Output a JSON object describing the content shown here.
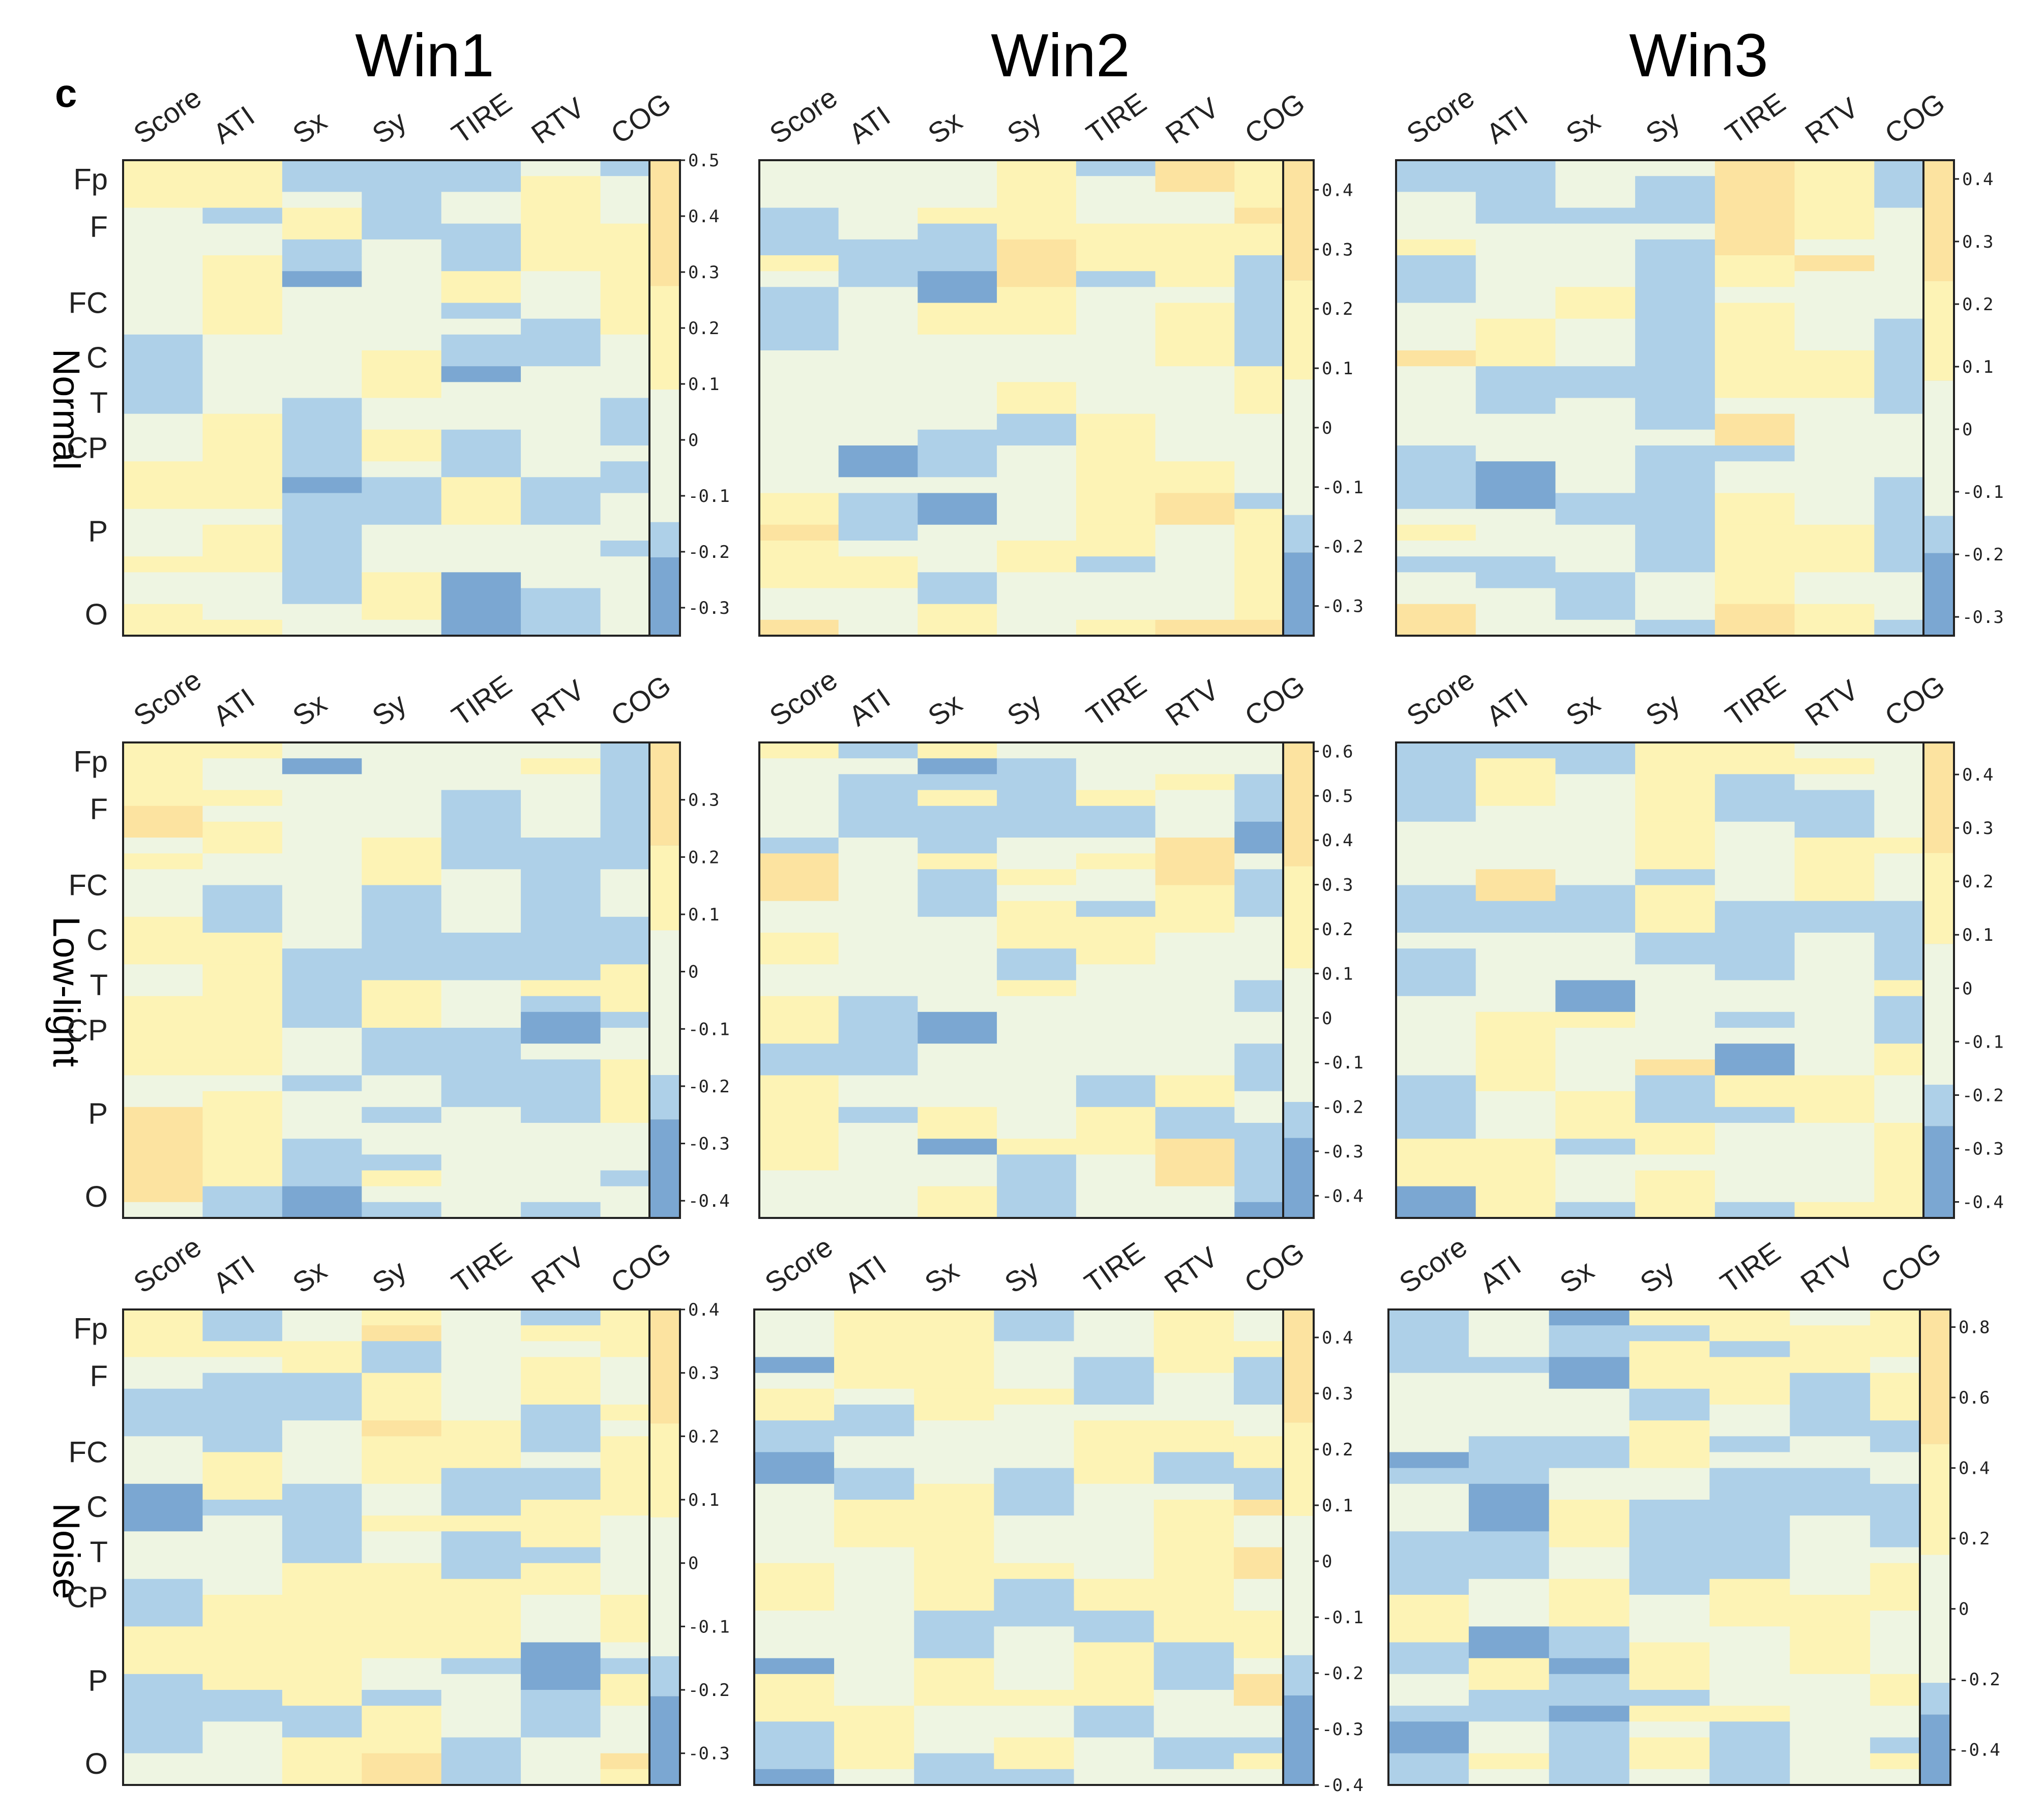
{
  "figure": {
    "panel_letter": "c",
    "column_titles": [
      "Win1",
      "Win2",
      "Win3"
    ],
    "row_titles": [
      "Normal",
      "Low-light",
      "Noise"
    ]
  },
  "colors": {
    "strong_blue": "#7ba7d2",
    "light_blue": "#aed0e8",
    "pale": "#eef5e2",
    "light_yellow": "#fdf3b5",
    "strong_yellow": "#fce3a0"
  },
  "chart_data": [
    {
      "type": "heatmap",
      "condition": "Normal",
      "window": "Win1",
      "columns": [
        "Score",
        "ATI",
        "Sx",
        "Sy",
        "TIRE",
        "RTV",
        "COG"
      ],
      "region_labels": [
        "Fp",
        "F",
        "FC",
        "C",
        "T",
        "CP",
        "P",
        "O"
      ],
      "colorbar_ticks": [
        "0.5",
        "0.4",
        "0.3",
        "0.2",
        "0.1",
        "0",
        "-0.1",
        "-0.2",
        "-0.3"
      ],
      "range": [
        -0.35,
        0.5
      ]
    },
    {
      "type": "heatmap",
      "condition": "Normal",
      "window": "Win2",
      "columns": [
        "Score",
        "ATI",
        "Sx",
        "Sy",
        "TIRE",
        "RTV",
        "COG"
      ],
      "region_labels": [],
      "colorbar_ticks": [
        "0.4",
        "0.3",
        "0.2",
        "0.1",
        "0",
        "-0.1",
        "-0.2",
        "-0.3"
      ],
      "range": [
        -0.35,
        0.45
      ]
    },
    {
      "type": "heatmap",
      "condition": "Normal",
      "window": "Win3",
      "columns": [
        "Score",
        "ATI",
        "Sx",
        "Sy",
        "TIRE",
        "RTV",
        "COG"
      ],
      "region_labels": [],
      "colorbar_ticks": [
        "0.4",
        "0.3",
        "0.2",
        "0.1",
        "0",
        "-0.1",
        "-0.2",
        "-0.3"
      ],
      "range": [
        -0.33,
        0.43
      ]
    },
    {
      "type": "heatmap",
      "condition": "Low-light",
      "window": "Win1",
      "columns": [
        "Score",
        "ATI",
        "Sx",
        "Sy",
        "TIRE",
        "RTV",
        "COG"
      ],
      "region_labels": [
        "Fp",
        "F",
        "FC",
        "C",
        "T",
        "CP",
        "P",
        "O"
      ],
      "colorbar_ticks": [
        "0.3",
        "0.2",
        "0.1",
        "0",
        "-0.1",
        "-0.2",
        "-0.3",
        "-0.4"
      ],
      "range": [
        -0.43,
        0.4
      ]
    },
    {
      "type": "heatmap",
      "condition": "Low-light",
      "window": "Win2",
      "columns": [
        "Score",
        "ATI",
        "Sx",
        "Sy",
        "TIRE",
        "RTV",
        "COG"
      ],
      "region_labels": [],
      "colorbar_ticks": [
        "0.6",
        "0.5",
        "0.4",
        "0.3",
        "0.2",
        "0.1",
        "0",
        "-0.1",
        "-0.2",
        "-0.3",
        "-0.4"
      ],
      "range": [
        -0.45,
        0.62
      ]
    },
    {
      "type": "heatmap",
      "condition": "Low-light",
      "window": "Win3",
      "columns": [
        "Score",
        "ATI",
        "Sx",
        "Sy",
        "TIRE",
        "RTV",
        "COG"
      ],
      "region_labels": [],
      "colorbar_ticks": [
        "0.4",
        "0.3",
        "0.2",
        "0.1",
        "0",
        "-0.1",
        "-0.2",
        "-0.3",
        "-0.4"
      ],
      "range": [
        -0.43,
        0.46
      ]
    },
    {
      "type": "heatmap",
      "condition": "Noise",
      "window": "Win1",
      "columns": [
        "Score",
        "ATI",
        "Sx",
        "Sy",
        "TIRE",
        "RTV",
        "COG"
      ],
      "region_labels": [
        "Fp",
        "F",
        "FC",
        "C",
        "T",
        "CP",
        "P",
        "O"
      ],
      "colorbar_ticks": [
        "0.4",
        "0.3",
        "0.2",
        "0.1",
        "0",
        "-0.1",
        "-0.2",
        "-0.3"
      ],
      "range": [
        -0.35,
        0.4
      ]
    },
    {
      "type": "heatmap",
      "condition": "Noise",
      "window": "Win2",
      "columns": [
        "Score",
        "ATI",
        "Sx",
        "Sy",
        "TIRE",
        "RTV",
        "COG"
      ],
      "region_labels": [],
      "colorbar_ticks": [
        "0.4",
        "0.3",
        "0.2",
        "0.1",
        "0",
        "-0.1",
        "-0.2",
        "-0.3",
        "-0.4"
      ],
      "range": [
        -0.4,
        0.45
      ]
    },
    {
      "type": "heatmap",
      "condition": "Noise",
      "window": "Win3",
      "columns": [
        "Score",
        "ATI",
        "Sx",
        "Sy",
        "TIRE",
        "RTV",
        "COG"
      ],
      "region_labels": [],
      "colorbar_ticks": [
        "0.8",
        "0.6",
        "0.4",
        "0.2",
        "0",
        "-0.2",
        "-0.4"
      ],
      "range": [
        -0.5,
        0.85
      ]
    }
  ]
}
